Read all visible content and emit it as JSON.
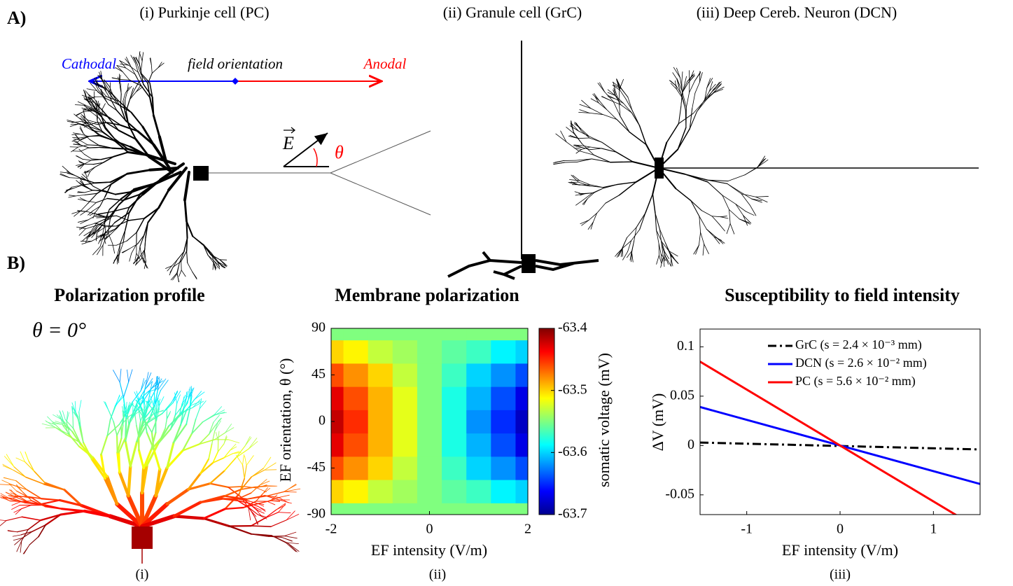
{
  "figure": {
    "label_a": "A)",
    "label_b": "B)",
    "cell_titles": [
      "(i) Purkinje cell (PC)",
      "(ii) Granule cell (GrC)",
      "(iii) Deep Cereb. Neuron (DCN)"
    ],
    "cathodal": "Cathodal",
    "field_orientation": "field orientation",
    "anodal": "Anodal",
    "e_vector": "E",
    "theta": "θ",
    "profile_title": "Polarization profile",
    "profile_angle": "θ = 0°",
    "panel_tags": [
      "(i)",
      "(ii)",
      "(iii)"
    ]
  },
  "chart_data": [
    {
      "type": "heatmap",
      "title": "Membrane polarization",
      "xlabel": "EF intensity (V/m)",
      "ylabel": "EF orientation, θ (°)",
      "x": [
        -2,
        -1.5,
        -1,
        -0.5,
        0,
        0.5,
        1,
        1.5,
        2
      ],
      "y": [
        -90,
        -67.5,
        -45,
        -22.5,
        0,
        22.5,
        45,
        67.5,
        90
      ],
      "z": [
        [
          -63.55,
          -63.55,
          -63.55,
          -63.55,
          -63.55,
          -63.55,
          -63.55,
          -63.55,
          -63.55
        ],
        [
          -63.5,
          -63.51,
          -63.53,
          -63.54,
          -63.55,
          -63.56,
          -63.57,
          -63.59,
          -63.6
        ],
        [
          -63.46,
          -63.48,
          -63.5,
          -63.53,
          -63.55,
          -63.57,
          -63.6,
          -63.62,
          -63.64
        ],
        [
          -63.43,
          -63.46,
          -63.49,
          -63.52,
          -63.55,
          -63.58,
          -63.61,
          -63.64,
          -63.67
        ],
        [
          -63.42,
          -63.45,
          -63.49,
          -63.52,
          -63.55,
          -63.58,
          -63.62,
          -63.65,
          -63.68
        ],
        [
          -63.43,
          -63.46,
          -63.49,
          -63.52,
          -63.55,
          -63.58,
          -63.61,
          -63.64,
          -63.67
        ],
        [
          -63.46,
          -63.48,
          -63.5,
          -63.53,
          -63.55,
          -63.57,
          -63.6,
          -63.62,
          -63.64
        ],
        [
          -63.5,
          -63.51,
          -63.53,
          -63.54,
          -63.55,
          -63.56,
          -63.57,
          -63.59,
          -63.6
        ],
        [
          -63.55,
          -63.55,
          -63.55,
          -63.55,
          -63.55,
          -63.55,
          -63.55,
          -63.55,
          -63.55
        ]
      ],
      "xlim": [
        -2,
        2
      ],
      "xticks": [
        -2,
        0,
        2
      ],
      "ylim": [
        -90,
        90
      ],
      "yticks": [
        -90,
        -45,
        0,
        45,
        90
      ],
      "colormap": "jet",
      "clim": [
        -63.7,
        -63.4
      ],
      "cticks": [
        -63.7,
        -63.6,
        -63.5,
        -63.4
      ],
      "clabel": "somatic voltage (mV)"
    },
    {
      "type": "line",
      "title": "Susceptibility to field intensity",
      "xlabel": "EF intensity (V/m)",
      "ylabel": "ΔV (mV)",
      "x": [
        -1.5,
        1.5
      ],
      "series": [
        {
          "name": "GrC (s = 2.4 × 10⁻³ mm)",
          "color": "#000000",
          "dash": "dashdot",
          "values": [
            0.003,
            -0.004
          ]
        },
        {
          "name": "DCN (s = 2.6 × 10⁻² mm)",
          "color": "#0000ff",
          "dash": "solid",
          "values": [
            0.039,
            -0.039
          ]
        },
        {
          "name": "PC (s = 5.6 × 10⁻² mm)",
          "color": "#ff0000",
          "dash": "solid",
          "values": [
            0.085,
            -0.085
          ]
        }
      ],
      "xlim": [
        -1.5,
        1.5
      ],
      "xticks": [
        -1,
        0,
        1
      ],
      "ylim": [
        -0.07,
        0.118
      ],
      "yticks": [
        -0.05,
        0,
        0.05,
        0.1
      ],
      "legend": "upper right"
    }
  ]
}
